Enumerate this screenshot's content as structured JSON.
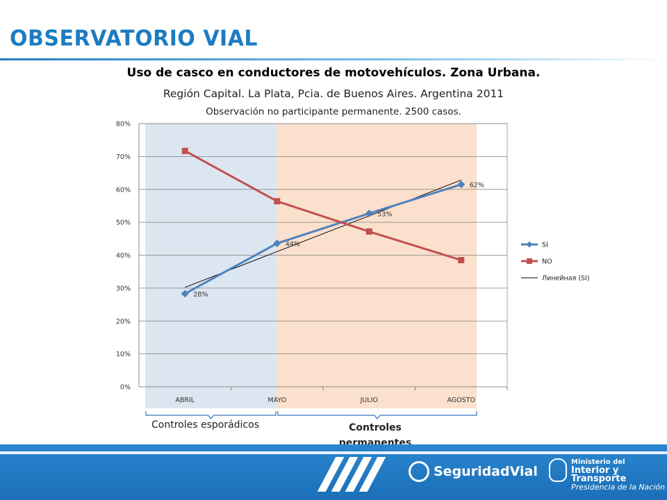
{
  "header": {
    "brand": "OBSERVATORIO VIAL",
    "title": "Uso de casco en conductores de motovehículos. Zona Urbana.",
    "subtitle": "Región Capital. La Plata, Pcia. de Buenos Aires. Argentina 2011",
    "subtitle2": "Observación no participante permanente. 2500 casos."
  },
  "chart_data": {
    "type": "line",
    "categories": [
      "ABRIL",
      "MAYO",
      "JULIO",
      "AGOSTO"
    ],
    "series": [
      {
        "name": "SI",
        "values": [
          0.283,
          0.436,
          0.527,
          0.615
        ],
        "color": "#4f81bd",
        "marker": "diamond",
        "labels": [
          "28%",
          "44%",
          "53%",
          "62%"
        ]
      },
      {
        "name": "NO",
        "values": [
          0.717,
          0.564,
          0.472,
          0.385
        ],
        "color": "#c0504d",
        "marker": "square"
      }
    ],
    "trendline": {
      "name": "Линейная (SI)",
      "of": "SI",
      "type": "linear",
      "color": "#000000"
    },
    "ylim": [
      0,
      0.8
    ],
    "yticks": [
      "0%",
      "10%",
      "20%",
      "30%",
      "40%",
      "50%",
      "60%",
      "70%",
      "80%"
    ],
    "grid": true,
    "legend_position": "right",
    "bands": [
      {
        "from": "ABRIL",
        "to": "MAYO",
        "color": "#dce6f1"
      },
      {
        "from": "MAYO",
        "to": "AGOSTO",
        "color": "#fbe0cd"
      }
    ]
  },
  "annotations": {
    "esporadicos": "Controles esporádicos",
    "permanentes": "Controles permanentes"
  },
  "footer": {
    "seguridad": "Seguridad",
    "vial": "Vial",
    "ministerio_1": "Ministerio del",
    "ministerio_2": "Interior y Transporte",
    "ministerio_3": "Presidencia de la Nación",
    "background": "#1b6fb7"
  }
}
